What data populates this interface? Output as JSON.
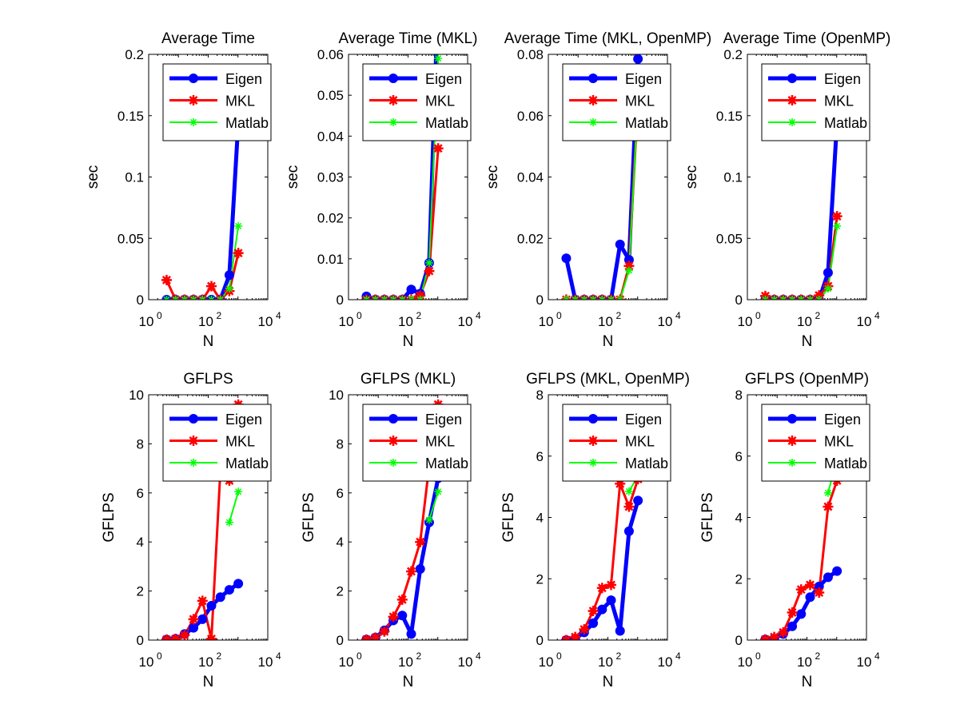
{
  "figure": {
    "background": "#ffffff"
  },
  "chart_data": [
    {
      "type": "line",
      "title": "Average Time",
      "xlabel": "N",
      "ylabel": "sec",
      "xscale": "log",
      "xlim": [
        1,
        10000
      ],
      "ylim": [
        0,
        0.2
      ],
      "yticks": [
        "0",
        "0.05",
        "0.1",
        "0.15",
        "0.2"
      ],
      "xtick_base": "10",
      "xtick_exponents": [
        "0",
        "2",
        "4"
      ],
      "legend": "top-right",
      "series": [
        {
          "name": "Eigen",
          "color": "#0000ff",
          "marker": "circle",
          "x": [
            4,
            8,
            16,
            32,
            64,
            128,
            256,
            512,
            1024
          ],
          "y": [
            0.0,
            0.0,
            0.0,
            0.0,
            0.0,
            0.0,
            0.0,
            0.02,
            0.145
          ]
        },
        {
          "name": "MKL",
          "color": "#ff0000",
          "marker": "star",
          "x": [
            4,
            8,
            16,
            32,
            64,
            128,
            256,
            512,
            1024
          ],
          "y": [
            0.016,
            0.0,
            0.0,
            0.0,
            0.0,
            0.011,
            0.0,
            0.007,
            0.038
          ]
        },
        {
          "name": "Matlab",
          "color": "#00ff00",
          "marker": "asterisk",
          "x": [
            4,
            8,
            16,
            32,
            64,
            128,
            256,
            512,
            1024
          ],
          "y": [
            0.0,
            0.0,
            0.0,
            0.0,
            0.0,
            0.0,
            0.0,
            0.009,
            0.06
          ]
        }
      ]
    },
    {
      "type": "line",
      "title": "Average Time (MKL)",
      "xlabel": "N",
      "ylabel": "sec",
      "xscale": "log",
      "xlim": [
        1,
        10000
      ],
      "ylim": [
        0,
        0.06
      ],
      "yticks": [
        "0",
        "0.01",
        "0.02",
        "0.03",
        "0.04",
        "0.05",
        "0.06"
      ],
      "xtick_base": "10",
      "xtick_exponents": [
        "0",
        "2",
        "4"
      ],
      "legend": "top-right",
      "series": [
        {
          "name": "Eigen",
          "color": "#0000ff",
          "marker": "circle",
          "x": [
            4,
            8,
            16,
            32,
            64,
            128,
            256,
            512,
            1024
          ],
          "y": [
            0.0008,
            0.0,
            0.0,
            0.0,
            0.0,
            0.0025,
            0.0015,
            0.009,
            0.075
          ]
        },
        {
          "name": "MKL",
          "color": "#ff0000",
          "marker": "star",
          "x": [
            4,
            8,
            16,
            32,
            64,
            128,
            256,
            512,
            1024
          ],
          "y": [
            0.0,
            0.0,
            0.0,
            0.0,
            0.0,
            0.0,
            0.001,
            0.007,
            0.037
          ]
        },
        {
          "name": "Matlab",
          "color": "#00ff00",
          "marker": "asterisk",
          "x": [
            4,
            8,
            16,
            32,
            64,
            128,
            256,
            512,
            1024
          ],
          "y": [
            0.0,
            0.0,
            0.0,
            0.0,
            0.0,
            0.0,
            0.0,
            0.009,
            0.059
          ]
        }
      ]
    },
    {
      "type": "line",
      "title": "Average Time (MKL, OpenMP)",
      "xlabel": "N",
      "ylabel": "sec",
      "xscale": "log",
      "xlim": [
        1,
        10000
      ],
      "ylim": [
        0,
        0.08
      ],
      "yticks": [
        "0",
        "0.02",
        "0.04",
        "0.06",
        "0.08"
      ],
      "xtick_base": "10",
      "xtick_exponents": [
        "0",
        "2",
        "4"
      ],
      "legend": "top-right",
      "series": [
        {
          "name": "Eigen",
          "color": "#0000ff",
          "marker": "circle",
          "x": [
            4,
            8,
            16,
            32,
            64,
            128,
            256,
            512,
            1024
          ],
          "y": [
            0.0135,
            0.0,
            0.0,
            0.0,
            0.0,
            0.0,
            0.018,
            0.013,
            0.0785
          ]
        },
        {
          "name": "MKL",
          "color": "#ff0000",
          "marker": "star",
          "x": [
            4,
            8,
            16,
            32,
            64,
            128,
            256,
            512,
            1024
          ],
          "y": [
            0.0,
            0.0,
            0.0,
            0.0,
            0.0,
            0.0,
            0.0,
            0.011,
            0.065
          ]
        },
        {
          "name": "Matlab",
          "color": "#00ff00",
          "marker": "asterisk",
          "x": [
            4,
            8,
            16,
            32,
            64,
            128,
            256,
            512,
            1024
          ],
          "y": [
            0.0,
            0.0,
            0.0,
            0.0,
            0.0,
            0.0,
            0.0,
            0.0095,
            0.065
          ]
        }
      ]
    },
    {
      "type": "line",
      "title": "Average Time (OpenMP)",
      "xlabel": "N",
      "ylabel": "sec",
      "xscale": "log",
      "xlim": [
        1,
        10000
      ],
      "ylim": [
        0,
        0.2
      ],
      "yticks": [
        "0",
        "0.05",
        "0.1",
        "0.15",
        "0.2"
      ],
      "xtick_base": "10",
      "xtick_exponents": [
        "0",
        "2",
        "4"
      ],
      "legend": "top-right",
      "series": [
        {
          "name": "Eigen",
          "color": "#0000ff",
          "marker": "circle",
          "x": [
            4,
            8,
            16,
            32,
            64,
            128,
            256,
            512,
            1024
          ],
          "y": [
            0.0,
            0.0,
            0.0,
            0.0,
            0.0,
            0.0,
            0.0,
            0.022,
            0.145
          ]
        },
        {
          "name": "MKL",
          "color": "#ff0000",
          "marker": "star",
          "x": [
            4,
            8,
            16,
            32,
            64,
            128,
            256,
            512,
            1024
          ],
          "y": [
            0.003,
            0.0,
            0.0,
            0.0,
            0.0,
            0.0,
            0.0035,
            0.011,
            0.068
          ]
        },
        {
          "name": "Matlab",
          "color": "#00ff00",
          "marker": "asterisk",
          "x": [
            4,
            8,
            16,
            32,
            64,
            128,
            256,
            512,
            1024
          ],
          "y": [
            0.0,
            0.0,
            0.0,
            0.0,
            0.0,
            0.0,
            0.0,
            0.009,
            0.06
          ]
        }
      ]
    },
    {
      "type": "line",
      "title": "GFLPS",
      "xlabel": "N",
      "ylabel": "GFLPS",
      "xscale": "log",
      "xlim": [
        1,
        10000
      ],
      "ylim": [
        0,
        10
      ],
      "yticks": [
        "0",
        "2",
        "4",
        "6",
        "8",
        "10"
      ],
      "xtick_base": "10",
      "xtick_exponents": [
        "0",
        "2",
        "4"
      ],
      "legend": "top-right",
      "series": [
        {
          "name": "Eigen",
          "color": "#0000ff",
          "marker": "circle",
          "x": [
            4,
            8,
            16,
            32,
            64,
            128,
            256,
            512,
            1024
          ],
          "y": [
            0.02,
            0.05,
            0.25,
            0.5,
            0.85,
            1.4,
            1.75,
            2.05,
            2.3
          ]
        },
        {
          "name": "MKL",
          "color": "#ff0000",
          "marker": "star",
          "x": [
            4,
            8,
            16,
            32,
            64,
            128,
            256,
            512,
            1024
          ],
          "y": [
            0.02,
            0.05,
            0.2,
            0.85,
            1.6,
            0.05,
            6.9,
            6.5,
            9.6
          ]
        },
        {
          "name": "Matlab",
          "color": "#00ff00",
          "marker": "asterisk",
          "x": [
            512,
            1024
          ],
          "y": [
            4.8,
            6.05
          ]
        }
      ]
    },
    {
      "type": "line",
      "title": "GFLPS (MKL)",
      "xlabel": "N",
      "ylabel": "GFLPS",
      "xscale": "log",
      "xlim": [
        1,
        10000
      ],
      "ylim": [
        0,
        10
      ],
      "yticks": [
        "0",
        "2",
        "4",
        "6",
        "8",
        "10"
      ],
      "xtick_base": "10",
      "xtick_exponents": [
        "0",
        "2",
        "4"
      ],
      "legend": "top-right",
      "series": [
        {
          "name": "Eigen",
          "color": "#0000ff",
          "marker": "circle",
          "x": [
            4,
            8,
            16,
            32,
            64,
            128,
            256,
            512,
            1024
          ],
          "y": [
            0.02,
            0.1,
            0.4,
            0.8,
            1.0,
            0.25,
            2.9,
            4.8,
            6.6
          ]
        },
        {
          "name": "MKL",
          "color": "#ff0000",
          "marker": "star",
          "x": [
            4,
            8,
            16,
            32,
            64,
            128,
            256,
            512,
            1024
          ],
          "y": [
            0.02,
            0.1,
            0.35,
            0.95,
            1.65,
            2.8,
            4.0,
            7.1,
            9.6
          ]
        },
        {
          "name": "Matlab",
          "color": "#00ff00",
          "marker": "asterisk",
          "x": [
            512,
            1024
          ],
          "y": [
            4.9,
            6.05
          ]
        }
      ]
    },
    {
      "type": "line",
      "title": "GFLPS (MKL, OpenMP)",
      "xlabel": "N",
      "ylabel": "GFLPS",
      "xscale": "log",
      "xlim": [
        1,
        10000
      ],
      "ylim": [
        0,
        8
      ],
      "yticks": [
        "0",
        "2",
        "4",
        "6",
        "8"
      ],
      "xtick_base": "10",
      "xtick_exponents": [
        "0",
        "2",
        "4"
      ],
      "legend": "top-right",
      "series": [
        {
          "name": "Eigen",
          "color": "#0000ff",
          "marker": "circle",
          "x": [
            4,
            8,
            16,
            32,
            64,
            128,
            256,
            512,
            1024
          ],
          "y": [
            0.0,
            0.05,
            0.25,
            0.55,
            1.0,
            1.3,
            0.3,
            3.55,
            4.55
          ]
        },
        {
          "name": "MKL",
          "color": "#ff0000",
          "marker": "star",
          "x": [
            4,
            8,
            16,
            32,
            64,
            128,
            256,
            512,
            1024
          ],
          "y": [
            0.0,
            0.1,
            0.35,
            0.95,
            1.7,
            1.8,
            5.1,
            4.35,
            5.25
          ]
        },
        {
          "name": "Matlab",
          "color": "#00ff00",
          "marker": "asterisk",
          "x": [
            512,
            1024
          ],
          "y": [
            4.85,
            5.35
          ]
        }
      ]
    },
    {
      "type": "line",
      "title": "GFLPS (OpenMP)",
      "xlabel": "N",
      "ylabel": "GFLPS",
      "xscale": "log",
      "xlim": [
        1,
        10000
      ],
      "ylim": [
        0,
        8
      ],
      "yticks": [
        "0",
        "2",
        "4",
        "6",
        "8"
      ],
      "xtick_base": "10",
      "xtick_exponents": [
        "0",
        "2",
        "4"
      ],
      "legend": "top-right",
      "series": [
        {
          "name": "Eigen",
          "color": "#0000ff",
          "marker": "circle",
          "x": [
            4,
            8,
            16,
            32,
            64,
            128,
            256,
            512,
            1024
          ],
          "y": [
            0.02,
            0.05,
            0.2,
            0.45,
            0.85,
            1.4,
            1.75,
            2.05,
            2.25
          ]
        },
        {
          "name": "MKL",
          "color": "#ff0000",
          "marker": "star",
          "x": [
            4,
            8,
            16,
            32,
            64,
            128,
            256,
            512,
            1024
          ],
          "y": [
            0.02,
            0.1,
            0.25,
            0.9,
            1.65,
            1.8,
            1.55,
            4.35,
            5.2
          ]
        },
        {
          "name": "Matlab",
          "color": "#00ff00",
          "marker": "asterisk",
          "x": [
            512,
            1024
          ],
          "y": [
            4.8,
            5.9
          ]
        }
      ]
    }
  ]
}
